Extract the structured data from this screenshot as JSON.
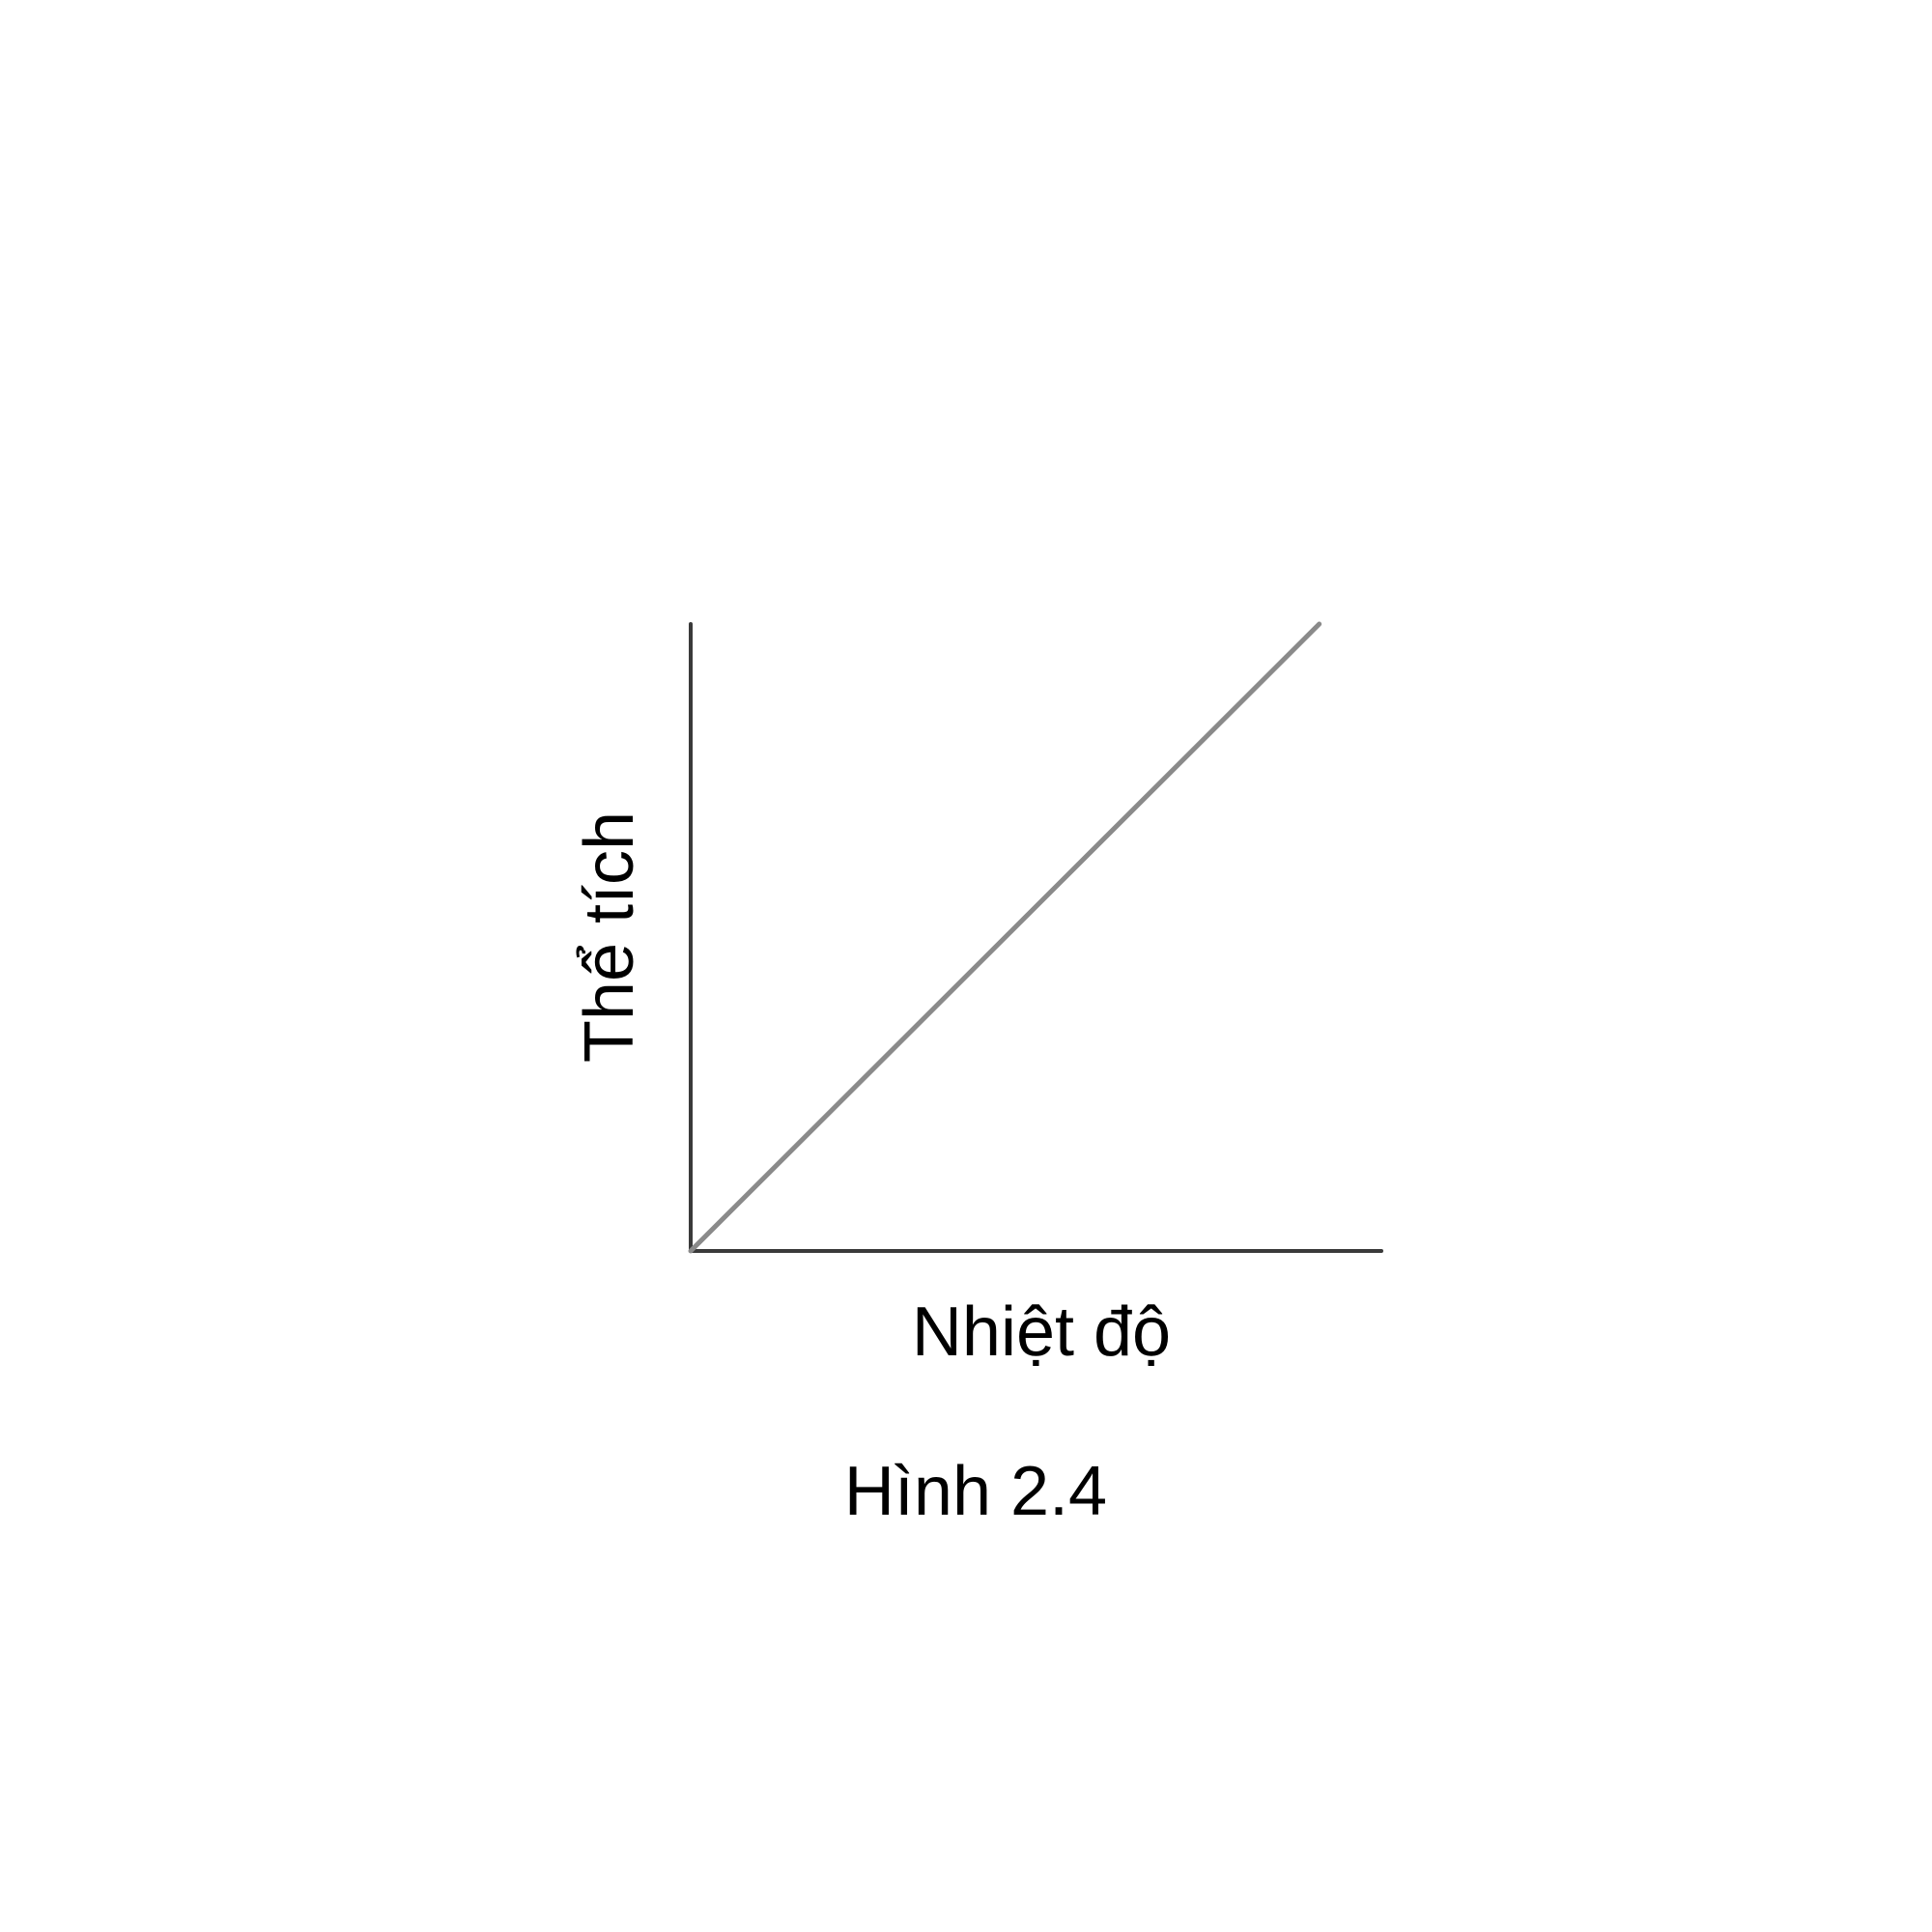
{
  "chart_data": {
    "type": "line",
    "title": "",
    "xlabel": "Nhiệt độ",
    "ylabel": "Thể tích",
    "caption": "Hình 2.4",
    "grid": false,
    "legend": "none",
    "xlim": [
      0,
      1
    ],
    "ylim": [
      0,
      1
    ],
    "series": [
      {
        "x": [
          0,
          0.91
        ],
        "values": [
          0,
          1
        ],
        "color": "#8a8a8a"
      }
    ],
    "axis_color": "#3a3a3a"
  }
}
